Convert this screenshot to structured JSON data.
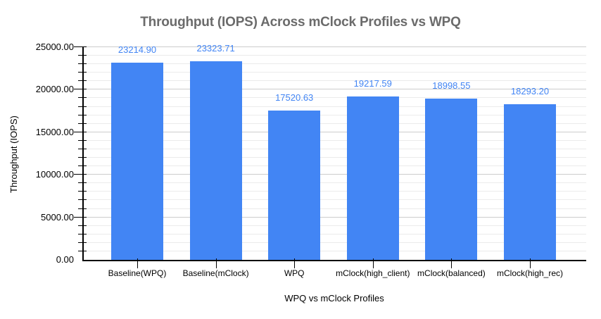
{
  "chart_data": {
    "type": "bar",
    "title": "Throughput (IOPS) Across mClock Profiles vs WPQ",
    "xlabel": "WPQ vs mClock Profiles",
    "ylabel": "Throughput (IOPS)",
    "categories": [
      "Baseline(WPQ)",
      "Baseline(mClock)",
      "WPQ",
      "mClock(high_client)",
      "mClock(balanced)",
      "mClock(high_rec)"
    ],
    "values": [
      23214.9,
      23323.71,
      17520.63,
      19217.59,
      18998.55,
      18293.2
    ],
    "value_labels": [
      "23214.90",
      "23323.71",
      "17520.63",
      "19217.59",
      "18998.55",
      "18293.20"
    ],
    "ylim": [
      0,
      25000
    ],
    "y_major_ticks": [
      0,
      5000,
      10000,
      15000,
      20000,
      25000
    ],
    "y_tick_labels": [
      "0.00",
      "5000.00",
      "10000.00",
      "15000.00",
      "20000.00",
      "25000.00"
    ],
    "y_minor_step": 1000,
    "grid": true,
    "legend_position": "none",
    "colors": {
      "bar": "#4285f4",
      "value_label": "#4285f4",
      "title": "#6b6b6b",
      "axis_text": "#000000",
      "axis_line": "#000000",
      "major_gridline": "#cccccc",
      "minor_gridline": "#ebebeb",
      "background": "#ffffff"
    }
  }
}
